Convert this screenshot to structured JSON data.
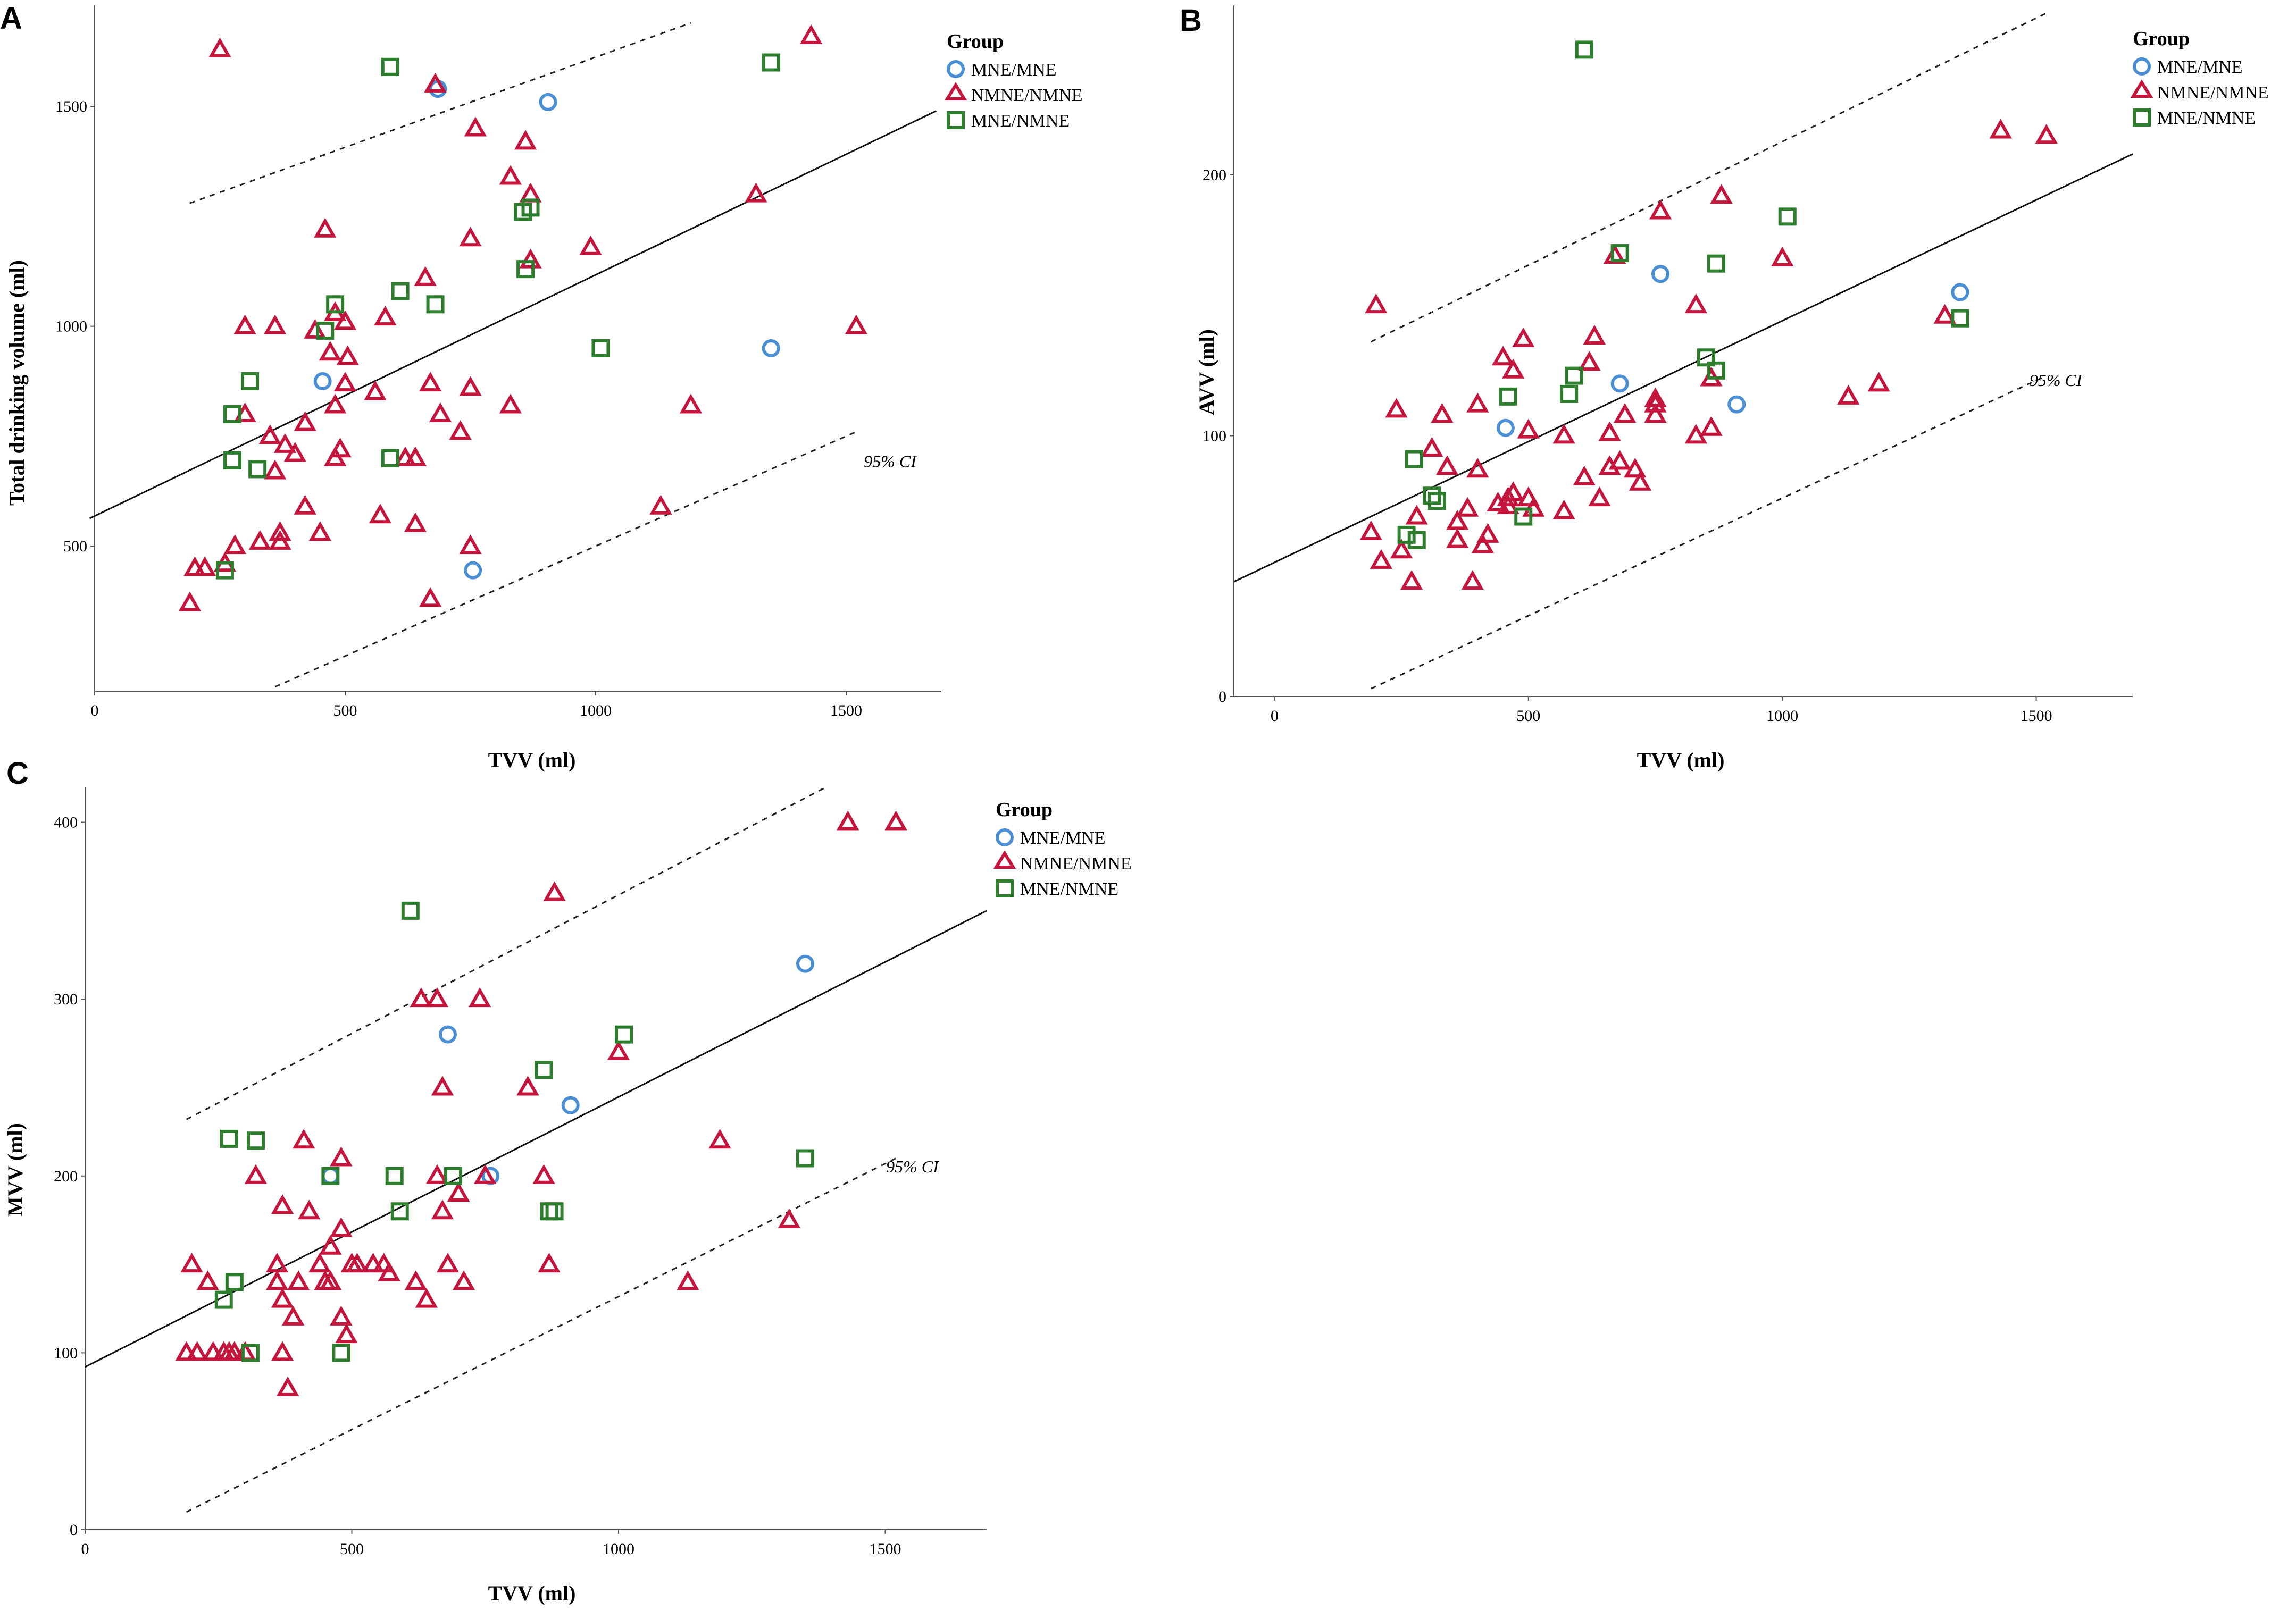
{
  "series_styles": {
    "MNE/MNE": {
      "shape": "circle",
      "color": "#4a8fd4"
    },
    "NMNE/NMNE": {
      "shape": "triangle",
      "color": "#c4163c"
    },
    "MNE/NMNE": {
      "shape": "square",
      "color": "#2e7d2e"
    }
  },
  "chart_data": [
    {
      "panel": "A",
      "type": "scatter",
      "xlabel": "TVV (ml)",
      "ylabel": "Total drinking volume (ml)",
      "xlim": [
        0,
        1690
      ],
      "ylim": [
        170,
        1730
      ],
      "xticks": [
        0,
        500,
        1000,
        1500
      ],
      "yticks": [
        500,
        1000,
        1500
      ],
      "xtick_labels": [
        "0",
        "500",
        "1000",
        "1500"
      ],
      "ytick_labels": [
        "500",
        "1000",
        "1500"
      ],
      "legend_title": "Group",
      "legend_position": "top-right",
      "ci_label": "95% CI",
      "ci_label_at": [
        1640,
        680
      ],
      "fit": {
        "x": [
          -10,
          1680
        ],
        "y": [
          563,
          1490
        ]
      },
      "ci_upper": {
        "x": [
          190,
          1190
        ],
        "y": [
          1280,
          1690
        ]
      },
      "ci_lower": {
        "x": [
          360,
          1520
        ],
        "y": [
          180,
          760
        ]
      },
      "series": [
        {
          "name": "MNE/MNE",
          "x": [
            455,
            685,
            905,
            755,
            1350
          ],
          "y": [
            875,
            1540,
            1510,
            445,
            950
          ]
        },
        {
          "name": "NMNE/NMNE",
          "x": [
            250,
            1430,
            760,
            870,
            1320,
            680,
            460,
            750,
            860,
            830,
            990,
            500,
            580,
            440,
            360,
            300,
            660,
            750,
            690,
            830,
            1190,
            670,
            500,
            640,
            300,
            420,
            560,
            640,
            1130,
            730,
            480,
            370,
            260,
            280,
            220,
            200,
            190,
            620,
            750,
            670,
            870,
            1520,
            470,
            480,
            490,
            400,
            380,
            360,
            350,
            330,
            450,
            420,
            370,
            570,
            505,
            480
          ],
          "y": [
            1630,
            1660,
            1450,
            1300,
            1300,
            1550,
            1220,
            1200,
            1420,
            1340,
            1180,
            1010,
            1020,
            990,
            1000,
            1000,
            1110,
            860,
            800,
            820,
            820,
            870,
            870,
            700,
            800,
            780,
            850,
            550,
            590,
            760,
            700,
            530,
            460,
            500,
            450,
            450,
            370,
            700,
            500,
            380,
            1150,
            1000,
            940,
            820,
            720,
            710,
            730,
            670,
            750,
            510,
            530,
            590,
            510,
            570,
            930,
            1030
          ]
        },
        {
          "name": "MNE/NMNE",
          "x": [
            590,
            610,
            1350,
            855,
            870,
            860,
            680,
            480,
            460,
            1010,
            310,
            275,
            275,
            325,
            590,
            260
          ],
          "y": [
            1590,
            1080,
            1600,
            1260,
            1270,
            1130,
            1050,
            1050,
            990,
            950,
            875,
            800,
            695,
            675,
            700,
            445
          ]
        }
      ]
    },
    {
      "panel": "B",
      "type": "scatter",
      "xlabel": "TVV (ml)",
      "ylabel": "AVV (ml)",
      "xlim": [
        -80,
        1690
      ],
      "ylim": [
        0,
        265
      ],
      "xticks": [
        0,
        500,
        1000,
        1500
      ],
      "yticks": [
        0,
        100,
        200
      ],
      "xtick_labels": [
        "0",
        "500",
        "1000",
        "1500"
      ],
      "ytick_labels": [
        "0",
        "100",
        "200"
      ],
      "legend_title": "Group",
      "legend_position": "top-right",
      "ci_label": "95% CI",
      "ci_label_at": [
        1590,
        119
      ],
      "fit": {
        "x": [
          -80,
          1690
        ],
        "y": [
          44,
          208
        ]
      },
      "ci_upper": {
        "x": [
          190,
          1520
        ],
        "y": [
          136,
          262
        ]
      },
      "ci_lower": {
        "x": [
          190,
          1520
        ],
        "y": [
          3,
          123
        ]
      },
      "series": [
        {
          "name": "MNE/MNE",
          "x": [
            760,
            1350,
            680,
            910,
            455
          ],
          "y": [
            162,
            155,
            120,
            112,
            103
          ]
        },
        {
          "name": "NMNE/NMNE",
          "x": [
            1430,
            1520,
            880,
            760,
            670,
            1000,
            830,
            200,
            1320,
            1190,
            1130,
            630,
            490,
            450,
            240,
            400,
            310,
            330,
            620,
            500,
            570,
            750,
            690,
            660,
            860,
            860,
            830,
            750,
            680,
            710,
            720,
            510,
            470,
            460,
            440,
            340,
            360,
            400,
            390,
            470,
            500,
            420,
            410,
            190,
            210,
            250,
            270,
            280,
            360,
            380,
            460,
            570,
            610,
            640,
            660,
            750
          ],
          "y": [
            217,
            215,
            192,
            186,
            169,
            168,
            150,
            150,
            146,
            120,
            115,
            138,
            137,
            130,
            110,
            112,
            95,
            108,
            128,
            102,
            100,
            112,
            108,
            101,
            103,
            122,
            100,
            108,
            90,
            87,
            82,
            72,
            78,
            76,
            74,
            88,
            67,
            87,
            44,
            125,
            76,
            62,
            58,
            63,
            52,
            56,
            44,
            69,
            60,
            72,
            73,
            71,
            84,
            76,
            88,
            114
          ]
        },
        {
          "name": "MNE/NMNE",
          "x": [
            610,
            680,
            1010,
            870,
            850,
            870,
            1350,
            590,
            580,
            460,
            275,
            310,
            320,
            490,
            260,
            280
          ],
          "y": [
            248,
            170,
            184,
            166,
            130,
            125,
            145,
            123,
            116,
            115,
            91,
            77,
            75,
            69,
            62,
            60
          ]
        }
      ]
    },
    {
      "panel": "C",
      "type": "scatter",
      "xlabel": "TVV (ml)",
      "ylabel": "MVV (ml)",
      "xlim": [
        0,
        1690
      ],
      "ylim": [
        0,
        420
      ],
      "xticks": [
        0,
        500,
        1000,
        1500
      ],
      "yticks": [
        0,
        100,
        200,
        300,
        400
      ],
      "xtick_labels": [
        "0",
        "500",
        "1000",
        "1500"
      ],
      "ytick_labels": [
        "0",
        "100",
        "200",
        "300",
        "400"
      ],
      "legend_title": "Group",
      "legend_position": "top-right",
      "ci_label": "95% CI",
      "ci_label_at": [
        1600,
        202
      ],
      "fit": {
        "x": [
          0,
          1690
        ],
        "y": [
          92,
          350
        ]
      },
      "ci_upper": {
        "x": [
          190,
          1390
        ],
        "y": [
          232,
          420
        ]
      },
      "ci_lower": {
        "x": [
          190,
          1520
        ],
        "y": [
          10,
          210
        ]
      },
      "series": [
        {
          "name": "MNE/MNE",
          "x": [
            1350,
            680,
            910,
            760,
            460
          ],
          "y": [
            320,
            280,
            240,
            200,
            200
          ]
        },
        {
          "name": "NMNE/NMNE",
          "x": [
            1430,
            1520,
            880,
            630,
            660,
            740,
            670,
            830,
            1000,
            1190,
            860,
            870,
            1320,
            1130,
            200,
            230,
            320,
            360,
            370,
            410,
            420,
            440,
            460,
            480,
            500,
            560,
            570,
            620,
            640,
            680,
            700,
            710,
            750,
            660,
            670,
            830,
            450,
            460,
            480,
            490,
            510,
            370,
            390,
            400,
            370,
            380,
            360,
            190,
            210,
            240,
            260,
            270,
            280,
            300,
            480,
            540
          ],
          "y": [
            400,
            400,
            360,
            300,
            300,
            300,
            250,
            250,
            270,
            220,
            200,
            150,
            175,
            140,
            150,
            140,
            200,
            150,
            183,
            220,
            180,
            150,
            160,
            170,
            150,
            150,
            145,
            140,
            130,
            150,
            190,
            140,
            200,
            200,
            180,
            250,
            140,
            140,
            120,
            110,
            150,
            130,
            120,
            140,
            100,
            80,
            140,
            100,
            100,
            100,
            100,
            100,
            100,
            100,
            210,
            150
          ]
        },
        {
          "name": "MNE/NMNE",
          "x": [
            610,
            1010,
            860,
            1350,
            880,
            870,
            690,
            580,
            590,
            460,
            270,
            320,
            280,
            260,
            310,
            480
          ],
          "y": [
            350,
            280,
            260,
            210,
            180,
            180,
            200,
            200,
            180,
            200,
            221,
            220,
            140,
            130,
            100,
            100
          ]
        }
      ]
    }
  ]
}
